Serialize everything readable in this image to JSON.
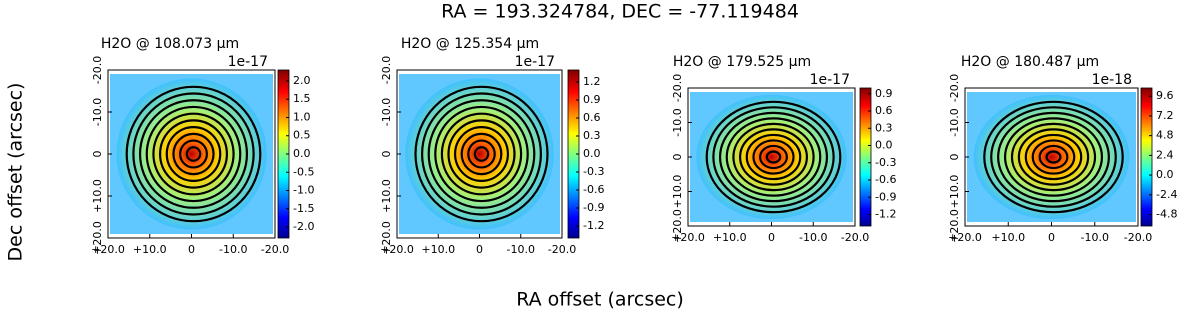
{
  "suptitle": "RA = 193.324784, DEC = -77.119484",
  "xlabel": "RA offset (arcsec)",
  "ylabel": "Dec offset (arcsec)",
  "chart_data": [
    {
      "type": "heatmap",
      "title": "H2O @ 108.073 μm",
      "xlim": [
        20,
        -20
      ],
      "xticks": [
        {
          "value": 20,
          "label": "+20.0"
        },
        {
          "value": 10,
          "label": "+10.0"
        },
        0,
        {
          "value": -10,
          "label": "-10.0"
        },
        {
          "value": -20,
          "label": "-20.0"
        }
      ],
      "ylim": [
        20,
        -20
      ],
      "yticks": [
        {
          "value": -20,
          "label": "-20.0"
        },
        {
          "value": -10,
          "label": "-10.0"
        },
        0,
        {
          "value": 10,
          "label": "+10.0"
        },
        {
          "value": 20,
          "label": "+20.0"
        }
      ],
      "clim": [
        -2.3,
        2.3
      ],
      "cticks": [
        {
          "value": 2,
          "label": "2.0"
        },
        1.5,
        {
          "value": 1,
          "label": "1.0"
        },
        0.5,
        {
          "value": 0,
          "label": "0.0"
        },
        -0.5,
        {
          "value": -1,
          "label": "-1.0"
        },
        -1.5,
        {
          "value": -2,
          "label": "-2.0"
        }
      ],
      "offset_label": "1e-17"
    },
    {
      "type": "heatmap",
      "title": "H2O @ 125.354 μm",
      "xlim": [
        20,
        -20
      ],
      "xticks": [
        {
          "value": 20,
          "label": "+20.0"
        },
        {
          "value": 10,
          "label": "+10.0"
        },
        0,
        {
          "value": -10,
          "label": "-10.0"
        },
        {
          "value": -20,
          "label": "-20.0"
        }
      ],
      "ylim": [
        20,
        -20
      ],
      "yticks": [
        {
          "value": -20,
          "label": "-20.0"
        },
        {
          "value": -10,
          "label": "-10.0"
        },
        0,
        {
          "value": 10,
          "label": "+10.0"
        },
        {
          "value": 20,
          "label": "+20.0"
        }
      ],
      "clim": [
        -1.4,
        1.4
      ],
      "cticks": [
        1.2,
        0.9,
        0.6,
        0.3,
        {
          "value": 0,
          "label": "0.0"
        },
        -0.3,
        -0.6,
        -0.9,
        -1.2
      ],
      "offset_label": "1e-17"
    },
    {
      "type": "heatmap",
      "title": "H2O @ 179.525 μm",
      "xlim": [
        20,
        -20
      ],
      "xticks": [
        {
          "value": 20,
          "label": "+20.0"
        },
        {
          "value": 10,
          "label": "+10.0"
        },
        0,
        {
          "value": -10,
          "label": "-10.0"
        },
        {
          "value": -20,
          "label": "-20.0"
        }
      ],
      "ylim": [
        20,
        -20
      ],
      "yticks": [
        {
          "value": -20,
          "label": "-20.0"
        },
        {
          "value": -10,
          "label": "-10.0"
        },
        0,
        {
          "value": 10,
          "label": "+10.0"
        },
        {
          "value": 20,
          "label": "+20.0"
        }
      ],
      "clim": [
        -1.4,
        1.0
      ],
      "cticks": [
        0.9,
        0.6,
        0.3,
        {
          "value": 0,
          "label": "0.0"
        },
        -0.3,
        -0.6,
        -0.9,
        -1.2
      ],
      "offset_label": "1e-17"
    },
    {
      "type": "heatmap",
      "title": "H2O @ 180.487 μm",
      "xlim": [
        20,
        -20
      ],
      "xticks": [
        {
          "value": 20,
          "label": "+20.0"
        },
        {
          "value": 10,
          "label": "+10.0"
        },
        0,
        {
          "value": -10,
          "label": "-10.0"
        },
        {
          "value": -20,
          "label": "-20.0"
        }
      ],
      "ylim": [
        20,
        -20
      ],
      "yticks": [
        {
          "value": -20,
          "label": "-20.0"
        },
        {
          "value": -10,
          "label": "-10.0"
        },
        0,
        {
          "value": 10,
          "label": "+10.0"
        },
        {
          "value": 20,
          "label": "+20.0"
        }
      ],
      "clim": [
        -6.2,
        10.6
      ],
      "cticks": [
        9.6,
        7.2,
        4.8,
        2.4,
        {
          "value": 0,
          "label": "0.0"
        },
        -2.4,
        -4.8
      ],
      "offset_label": "1e-18"
    }
  ]
}
